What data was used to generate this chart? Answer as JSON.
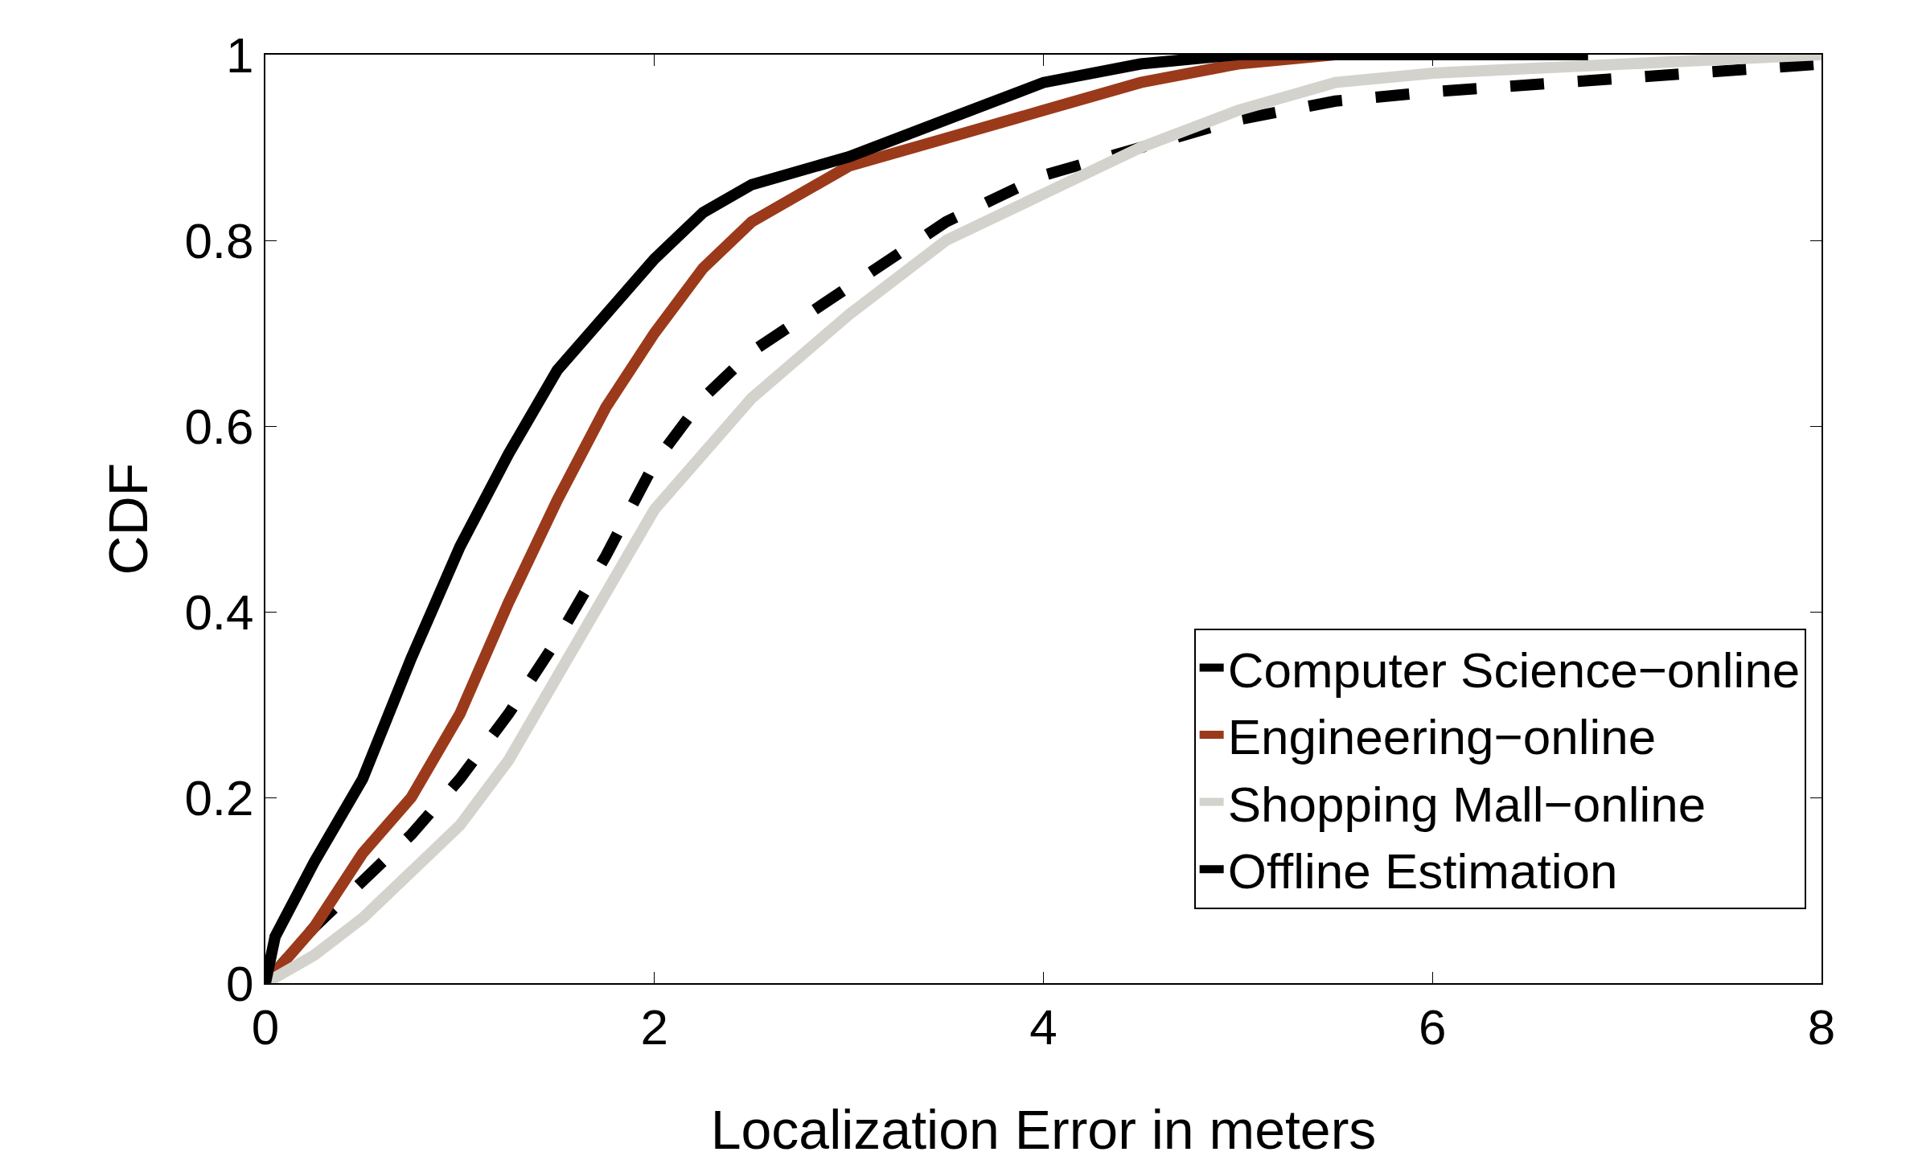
{
  "chart_data": {
    "type": "line",
    "xlabel": "Localization Error in meters",
    "ylabel": "CDF",
    "xlim": [
      0,
      8
    ],
    "xticks": [
      0,
      2,
      4,
      6,
      8
    ],
    "ylim": [
      0,
      1
    ],
    "yticks": [
      0,
      0.2,
      0.4,
      0.6,
      0.8,
      1
    ],
    "grid": false,
    "legend": "bottom right",
    "marker": "none",
    "series": [
      {
        "name": "Computer Science−online",
        "color": "#000000",
        "line_style": "dashed",
        "x": [
          0,
          0.25,
          0.5,
          0.75,
          1,
          1.25,
          1.5,
          1.75,
          2,
          2.25,
          2.5,
          3,
          3.5,
          4,
          4.5,
          5,
          5.5,
          6,
          8
        ],
        "values": [
          0,
          0.06,
          0.11,
          0.16,
          0.22,
          0.29,
          0.37,
          0.46,
          0.56,
          0.63,
          0.68,
          0.75,
          0.82,
          0.87,
          0.9,
          0.93,
          0.95,
          0.96,
          0.99
        ]
      },
      {
        "name": "Engineering−online",
        "color": "#9b3a1a",
        "line_style": "solid",
        "x": [
          0,
          0.25,
          0.5,
          0.75,
          1,
          1.25,
          1.5,
          1.75,
          2,
          2.25,
          2.5,
          3,
          3.5,
          4,
          4.5,
          5,
          5.5
        ],
        "values": [
          0,
          0.06,
          0.14,
          0.2,
          0.29,
          0.41,
          0.52,
          0.62,
          0.7,
          0.77,
          0.82,
          0.88,
          0.91,
          0.94,
          0.97,
          0.99,
          1
        ]
      },
      {
        "name": "Shopping Mall−online",
        "color": "#d4d2cc",
        "line_style": "solid",
        "x": [
          0,
          0.25,
          0.5,
          0.75,
          1,
          1.25,
          1.5,
          1.75,
          2,
          2.25,
          2.5,
          3,
          3.5,
          4,
          4.5,
          5,
          5.5,
          6,
          7,
          8
        ],
        "values": [
          0,
          0.03,
          0.07,
          0.12,
          0.17,
          0.24,
          0.33,
          0.42,
          0.51,
          0.57,
          0.63,
          0.72,
          0.8,
          0.85,
          0.9,
          0.94,
          0.97,
          0.98,
          0.99,
          1
        ]
      },
      {
        "name": "Offline Estimation",
        "color": "#000000",
        "line_style": "solid",
        "x": [
          0,
          0.05,
          0.25,
          0.5,
          0.75,
          1,
          1.25,
          1.5,
          1.75,
          2,
          2.25,
          2.5,
          3,
          3.5,
          4,
          4.5,
          5,
          6.8
        ],
        "values": [
          0,
          0.05,
          0.13,
          0.22,
          0.35,
          0.47,
          0.57,
          0.66,
          0.72,
          0.78,
          0.83,
          0.86,
          0.89,
          0.93,
          0.97,
          0.99,
          1,
          1
        ]
      }
    ]
  }
}
